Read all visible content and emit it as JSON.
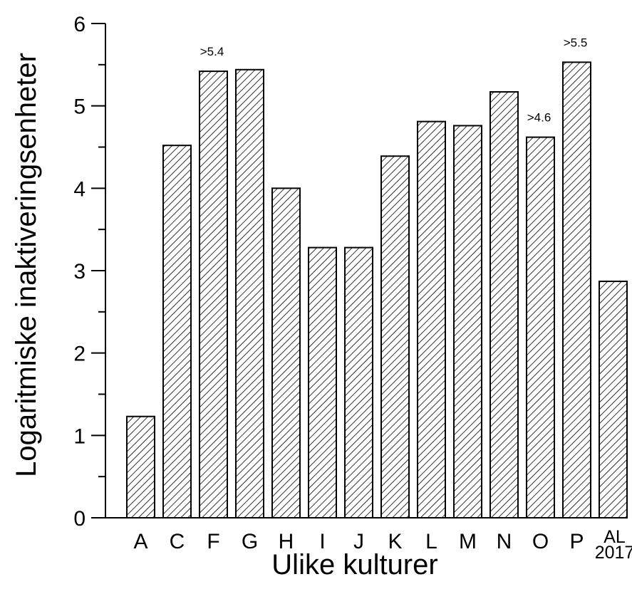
{
  "chart_data": {
    "type": "bar",
    "xlabel": "Ulike kulturer",
    "ylabel": "Logaritmiske inaktiveringsenheter",
    "ylim": [
      0,
      6
    ],
    "yticks": [
      "0",
      "1",
      "2",
      "3",
      "4",
      "5",
      "6"
    ],
    "categories": [
      "A",
      "C",
      "F",
      "G",
      "H",
      "I",
      "J",
      "K",
      "L",
      "M",
      "N",
      "O",
      "P",
      "AL 2017"
    ],
    "values": [
      1.23,
      4.52,
      5.42,
      5.44,
      4.0,
      3.28,
      3.28,
      4.39,
      4.81,
      4.76,
      5.17,
      4.62,
      5.53,
      2.87
    ],
    "annotations": [
      {
        "category": "F",
        "text": ">5.4"
      },
      {
        "category": "O",
        "text": ">4.6"
      },
      {
        "category": "P",
        "text": ">5.5"
      }
    ],
    "bar_fill": "diagonal-hatch",
    "grid": false
  }
}
